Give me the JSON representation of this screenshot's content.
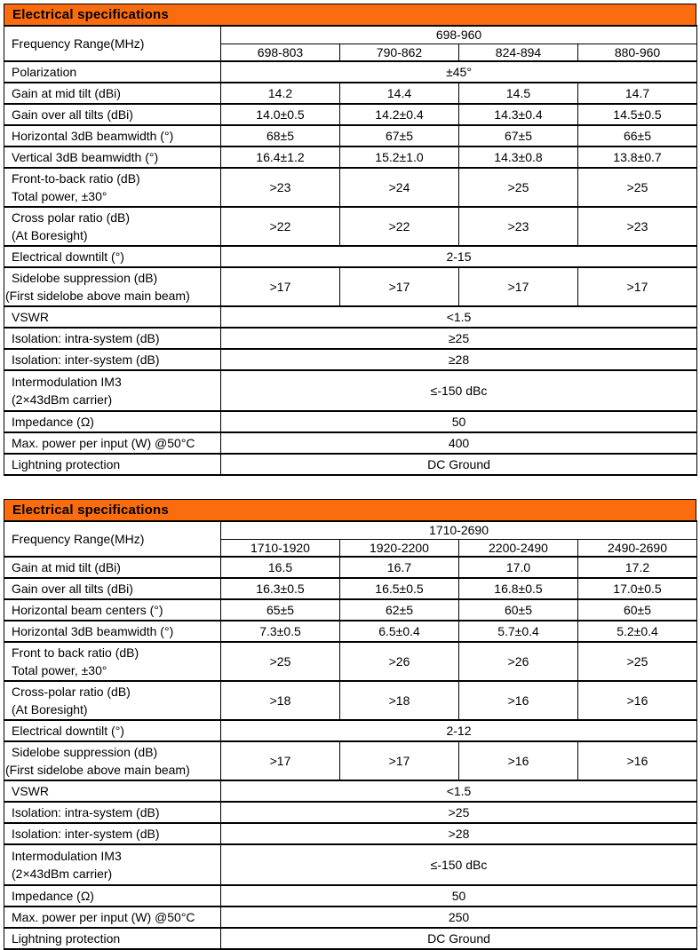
{
  "page": {
    "background": "#FFFFFF"
  },
  "accent": {
    "header_bg": "#FB6C0E",
    "header_text": "#000000",
    "border": "#000000"
  },
  "tables": [
    {
      "title": "Electrical specifications",
      "frequency": {
        "label": "Frequency Range(MHz)",
        "group": "698-960",
        "bands": [
          "698-803",
          "790-862",
          "824-894",
          "880-960"
        ]
      },
      "rows": [
        {
          "label": [
            "Polarization"
          ],
          "span": "±45°"
        },
        {
          "label": [
            "Gain at mid tilt (dBi)"
          ],
          "values": [
            "14.2",
            "14.4",
            "14.5",
            "14.7"
          ]
        },
        {
          "label": [
            "Gain over all tilts (dBi)"
          ],
          "values": [
            "14.0±0.5",
            "14.2±0.4",
            "14.3±0.4",
            "14.5±0.5"
          ]
        },
        {
          "label": [
            "Horizontal 3dB beamwidth (°)"
          ],
          "values": [
            "68±5",
            "67±5",
            "67±5",
            "66±5"
          ]
        },
        {
          "label": [
            "Vertical 3dB beamwidth (°)"
          ],
          "values": [
            "16.4±1.2",
            "15.2±1.0",
            "14.3±0.8",
            "13.8±0.7"
          ]
        },
        {
          "label": [
            "Front-to-back ratio (dB)",
            "Total power, ±30°"
          ],
          "values": [
            ">23",
            ">24",
            ">25",
            ">25"
          ]
        },
        {
          "label": [
            "Cross polar ratio (dB)",
            "(At Boresight)"
          ],
          "values": [
            ">22",
            ">22",
            ">23",
            ">23"
          ]
        },
        {
          "label": [
            "Electrical downtilt (°)"
          ],
          "span": "2-15"
        },
        {
          "label": [
            "Sidelobe suppression (dB)",
            "(First sidelobe above main beam)"
          ],
          "values": [
            ">17",
            ">17",
            ">17",
            ">17"
          ]
        },
        {
          "label": [
            "VSWR"
          ],
          "span": "<1.5"
        },
        {
          "label": [
            "Isolation: intra-system (dB)"
          ],
          "span": "≥25"
        },
        {
          "label": [
            "Isolation: inter-system (dB)"
          ],
          "span": "≥28"
        },
        {
          "label": [
            "Intermodulation IM3",
            "(2×43dBm carrier)"
          ],
          "span": "≤-150 dBc"
        },
        {
          "label": [
            "Impedance (Ω)"
          ],
          "span": "50"
        },
        {
          "label": [
            "Max. power per input (W) @50°C"
          ],
          "span": "400"
        },
        {
          "label": [
            "Lightning protection"
          ],
          "span": "DC Ground"
        }
      ]
    },
    {
      "title": "Electrical specifications",
      "frequency": {
        "label": "Frequency Range(MHz)",
        "group": "1710-2690",
        "bands": [
          "1710-1920",
          "1920-2200",
          "2200-2490",
          "2490-2690"
        ]
      },
      "rows": [
        {
          "label": [
            "Gain at mid tilt (dBi)"
          ],
          "values": [
            "16.5",
            "16.7",
            "17.0",
            "17.2"
          ]
        },
        {
          "label": [
            "Gain over all tilts (dBi)"
          ],
          "values": [
            "16.3±0.5",
            "16.5±0.5",
            "16.8±0.5",
            "17.0±0.5"
          ]
        },
        {
          "label": [
            "Horizontal beam centers (°)"
          ],
          "values": [
            "65±5",
            "62±5",
            "60±5",
            "60±5"
          ]
        },
        {
          "label": [
            "Horizontal 3dB beamwidth (°)"
          ],
          "values": [
            "7.3±0.5",
            "6.5±0.4",
            "5.7±0.4",
            "5.2±0.4"
          ]
        },
        {
          "label": [
            "Front to back ratio (dB)",
            "Total power, ±30°"
          ],
          "values": [
            ">25",
            ">26",
            ">26",
            ">25"
          ]
        },
        {
          "label": [
            "Cross-polar ratio (dB)",
            "(At Boresight)"
          ],
          "values": [
            ">18",
            ">18",
            ">16",
            ">16"
          ]
        },
        {
          "label": [
            "Electrical downtilt (°)"
          ],
          "span": "2-12"
        },
        {
          "label": [
            "Sidelobe suppression (dB)",
            "(First sidelobe above main beam)"
          ],
          "values": [
            ">17",
            ">17",
            ">16",
            ">16"
          ]
        },
        {
          "label": [
            "VSWR"
          ],
          "span": "<1.5"
        },
        {
          "label": [
            "Isolation: intra-system (dB)"
          ],
          "span": ">25"
        },
        {
          "label": [
            "Isolation: inter-system (dB)"
          ],
          "span": ">28"
        },
        {
          "label": [
            "Intermodulation IM3",
            "(2×43dBm carrier)"
          ],
          "span": "≤-150 dBc"
        },
        {
          "label": [
            "Impedance (Ω)"
          ],
          "span": "50"
        },
        {
          "label": [
            "Max. power per input (W) @50°C"
          ],
          "span": "250"
        },
        {
          "label": [
            "Lightning protection"
          ],
          "span": "DC Ground"
        }
      ]
    }
  ]
}
